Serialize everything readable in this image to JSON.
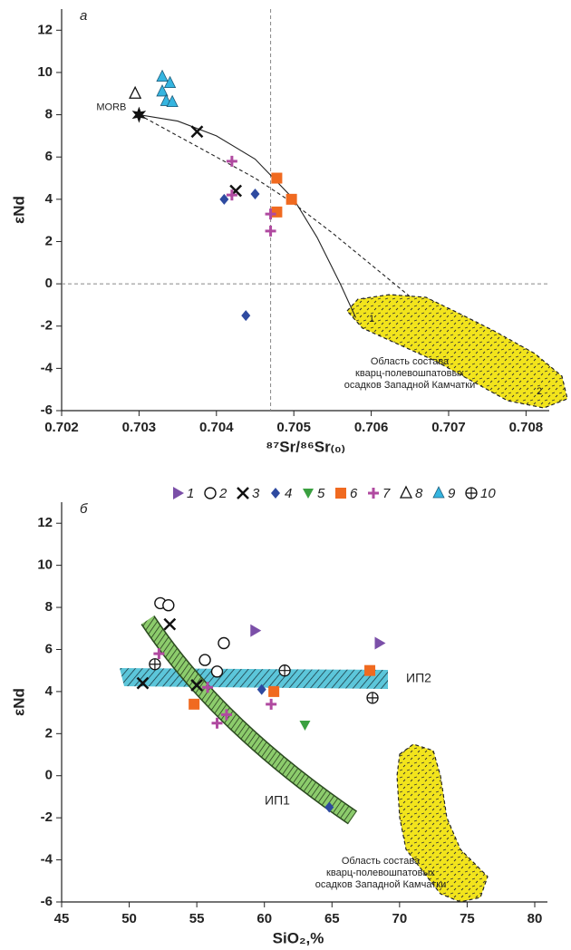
{
  "chart_data": [
    {
      "type": "scatter",
      "panel_label": "а",
      "ylabel": "εNd",
      "xlabel": "⁸⁷Sr/⁸⁶Sr₍₀₎",
      "xlim": [
        0.702,
        0.7083
      ],
      "ylim": [
        -6,
        13
      ],
      "xticks": [
        0.702,
        0.703,
        0.704,
        0.705,
        0.706,
        0.707,
        0.708
      ],
      "yticks": [
        -6,
        -4,
        -2,
        0,
        2,
        4,
        6,
        8,
        10,
        12
      ],
      "ref_lines": {
        "x": [
          0.7047
        ],
        "y": [
          0
        ]
      },
      "series": [
        {
          "marker": "x",
          "color": "#111111",
          "x": [
            0.70375,
            0.70425
          ],
          "values": [
            7.2,
            4.4
          ]
        },
        {
          "marker": "diamond",
          "color": "#2e4aa0",
          "x": [
            0.7041,
            0.7045,
            0.70438
          ],
          "values": [
            4.0,
            4.25,
            -1.5
          ]
        },
        {
          "marker": "square",
          "color": "#f06a20",
          "x": [
            0.70478,
            0.70478,
            0.70497
          ],
          "values": [
            5.0,
            3.4,
            4.0
          ]
        },
        {
          "marker": "plus",
          "color": "#b04aa0",
          "x": [
            0.7042,
            0.7042,
            0.7047,
            0.7047
          ],
          "values": [
            5.8,
            4.2,
            3.3,
            2.5
          ]
        },
        {
          "marker": "triangle-open",
          "color": "#111111",
          "x": [
            0.70295
          ],
          "values": [
            9.0
          ]
        },
        {
          "marker": "triangle",
          "color": "#35b5e0",
          "x": [
            0.7033,
            0.7034,
            0.7033,
            0.70335,
            0.70343
          ],
          "values": [
            9.8,
            9.5,
            9.1,
            8.65,
            8.6
          ]
        }
      ],
      "annotations": [
        {
          "text": "MORB",
          "marker": "star",
          "color": "#111111",
          "x": 0.703,
          "y": 8
        }
      ],
      "mixing_curves": [
        {
          "label": "1",
          "dashed": false,
          "x": [
            0.703,
            0.7035,
            0.704,
            0.7045,
            0.705,
            0.7053,
            0.7056,
            0.7058
          ],
          "values": [
            8,
            7.7,
            7.0,
            5.9,
            4.0,
            2.2,
            0.0,
            -1.6
          ]
        },
        {
          "label": "2",
          "dashed": true,
          "x": [
            0.703,
            0.7035,
            0.704,
            0.7045,
            0.705,
            0.7055,
            0.706,
            0.7065
          ],
          "values": [
            8,
            7.0,
            6.0,
            5.0,
            3.8,
            2.4,
            0.9,
            -0.6
          ]
        }
      ],
      "region_label": [
        "Область состава",
        "кварц-полевошпатовых",
        "осадков Западной Камчатки"
      ]
    },
    {
      "type": "scatter",
      "panel_label": "б",
      "ylabel": "εNd",
      "xlabel": "SiO₂,%",
      "xlim": [
        45,
        80
      ],
      "ylim": [
        -6,
        13
      ],
      "xticks": [
        45,
        50,
        55,
        60,
        65,
        70,
        75,
        80
      ],
      "yticks": [
        -6,
        -4,
        -2,
        0,
        2,
        4,
        6,
        8,
        10,
        12
      ],
      "legend": "top",
      "series": [
        {
          "name": "1",
          "marker": "triangle-right",
          "color": "#7b4fa8",
          "x": [
            59.3,
            68.5
          ],
          "values": [
            6.9,
            6.3
          ]
        },
        {
          "name": "2",
          "marker": "circle-open",
          "color": "#111111",
          "x": [
            52.3,
            52.9,
            57.0,
            56.5,
            55.6
          ],
          "values": [
            8.2,
            8.1,
            6.3,
            4.95,
            5.5
          ]
        },
        {
          "name": "3",
          "marker": "x",
          "color": "#111111",
          "x": [
            51,
            53,
            55
          ],
          "values": [
            4.4,
            7.2,
            4.3
          ]
        },
        {
          "name": "4",
          "marker": "diamond",
          "color": "#2e4aa0",
          "x": [
            59.8,
            64.8
          ],
          "values": [
            4.1,
            -1.5
          ]
        },
        {
          "name": "5",
          "marker": "triangle-down",
          "color": "#3aa040",
          "x": [
            63
          ],
          "values": [
            2.4
          ]
        },
        {
          "name": "6",
          "marker": "square",
          "color": "#f06a20",
          "x": [
            54.8,
            60.7,
            67.8
          ],
          "values": [
            3.4,
            4.0,
            5.0
          ]
        },
        {
          "name": "7",
          "marker": "plus",
          "color": "#b04aa0",
          "x": [
            52.2,
            55.8,
            56.5,
            57.2,
            60.5
          ],
          "values": [
            5.8,
            4.2,
            2.5,
            2.9,
            3.4
          ]
        },
        {
          "name": "8",
          "marker": "triangle-open",
          "color": "#111111",
          "x": [],
          "values": []
        },
        {
          "name": "9",
          "marker": "triangle",
          "color": "#35b5e0",
          "x": [],
          "values": []
        },
        {
          "name": "10",
          "marker": "circle-plus",
          "color": "#111111",
          "x": [
            51.9,
            61.5,
            68
          ],
          "values": [
            5.3,
            5.0,
            3.7
          ]
        }
      ],
      "band_labels": [
        "ИП1",
        "ИП2"
      ],
      "region_label": [
        "Область состава",
        "кварц-полевошпатовых",
        "осадков Западной Камчатки"
      ]
    }
  ]
}
